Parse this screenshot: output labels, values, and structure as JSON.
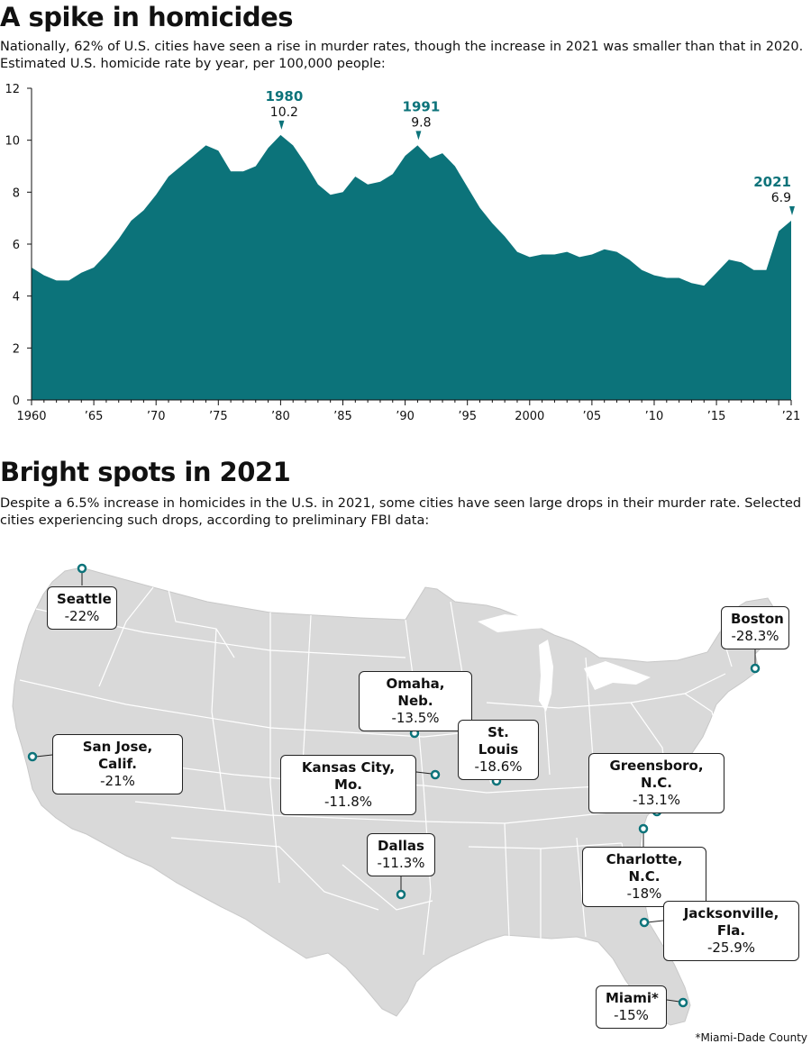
{
  "section1": {
    "title": "A spike in homicides",
    "dek": "Nationally, 62% of U.S. cities have seen a rise in murder rates, though the increase in 2021 was smaller than that in 2020. Estimated U.S. homicide rate by year, per 100,000 people:"
  },
  "section2": {
    "title": "Bright spots in 2021",
    "dek": "Despite a 6.5% increase in homicides in the U.S. in 2021, some cities have seen large drops in their murder rate. Selected cities experiencing such drops, according to preliminary FBI data:",
    "footnote": "*Miami-Dade County"
  },
  "colors": {
    "teal": "#0c737a",
    "map_fill": "#d9d9d9",
    "map_line": "#ffffff"
  },
  "chart_data": {
    "type": "area",
    "title": "A spike in homicides",
    "xlabel": "",
    "ylabel": "",
    "xlim": [
      1960,
      2021
    ],
    "ylim": [
      0,
      12
    ],
    "y_ticks": [
      0,
      2,
      4,
      6,
      8,
      10,
      12
    ],
    "x_ticks": [
      {
        "year": 1960,
        "label": "1960"
      },
      {
        "year": 1965,
        "label": "'65"
      },
      {
        "year": 1970,
        "label": "'70"
      },
      {
        "year": 1975,
        "label": "'75"
      },
      {
        "year": 1980,
        "label": "'80"
      },
      {
        "year": 1985,
        "label": "'85"
      },
      {
        "year": 1990,
        "label": "'90"
      },
      {
        "year": 1995,
        "label": "'95"
      },
      {
        "year": 2000,
        "label": "2000"
      },
      {
        "year": 2005,
        "label": "'05"
      },
      {
        "year": 2010,
        "label": "'10"
      },
      {
        "year": 2015,
        "label": "'15"
      },
      {
        "year": 2021,
        "label": "'21"
      }
    ],
    "x": [
      1960,
      1961,
      1962,
      1963,
      1964,
      1965,
      1966,
      1967,
      1968,
      1969,
      1970,
      1971,
      1972,
      1973,
      1974,
      1975,
      1976,
      1977,
      1978,
      1979,
      1980,
      1981,
      1982,
      1983,
      1984,
      1985,
      1986,
      1987,
      1988,
      1989,
      1990,
      1991,
      1992,
      1993,
      1994,
      1995,
      1996,
      1997,
      1998,
      1999,
      2000,
      2001,
      2002,
      2003,
      2004,
      2005,
      2006,
      2007,
      2008,
      2009,
      2010,
      2011,
      2012,
      2013,
      2014,
      2015,
      2016,
      2017,
      2018,
      2019,
      2020,
      2021
    ],
    "values": [
      5.1,
      4.8,
      4.6,
      4.6,
      4.9,
      5.1,
      5.6,
      6.2,
      6.9,
      7.3,
      7.9,
      8.6,
      9.0,
      9.4,
      9.8,
      9.6,
      8.8,
      8.8,
      9.0,
      9.7,
      10.2,
      9.8,
      9.1,
      8.3,
      7.9,
      8.0,
      8.6,
      8.3,
      8.4,
      8.7,
      9.4,
      9.8,
      9.3,
      9.5,
      9.0,
      8.2,
      7.4,
      6.8,
      6.3,
      5.7,
      5.5,
      5.6,
      5.6,
      5.7,
      5.5,
      5.6,
      5.8,
      5.7,
      5.4,
      5.0,
      4.8,
      4.7,
      4.7,
      4.5,
      4.4,
      4.9,
      5.4,
      5.3,
      5.0,
      5.0,
      6.5,
      6.9
    ],
    "annotations": [
      {
        "year": "1980",
        "value": "10.2",
        "x": 1980,
        "y": 10.2
      },
      {
        "year": "1991",
        "value": "9.8",
        "x": 1991,
        "y": 9.8
      },
      {
        "year": "2021",
        "value": "6.9",
        "x": 2021,
        "y": 6.9
      }
    ]
  },
  "map": {
    "cities": [
      {
        "name": "Seattle",
        "change": "-22%"
      },
      {
        "name": "Boston",
        "change": "-28.3%"
      },
      {
        "name": "Omaha, Neb.",
        "change": "-13.5%"
      },
      {
        "name": "St. Louis",
        "change": "-18.6%"
      },
      {
        "name": "San Jose, Calif.",
        "change": "-21%"
      },
      {
        "name": "Kansas City, Mo.",
        "change": "-11.8%"
      },
      {
        "name": "Greensboro, N.C.",
        "change": "-13.1%"
      },
      {
        "name": "Charlotte, N.C.",
        "change": "-18%"
      },
      {
        "name": "Dallas",
        "change": "-11.3%"
      },
      {
        "name": "Jacksonville, Fla.",
        "change": "-25.9%"
      },
      {
        "name": "Miami*",
        "change": "-15%"
      }
    ]
  }
}
